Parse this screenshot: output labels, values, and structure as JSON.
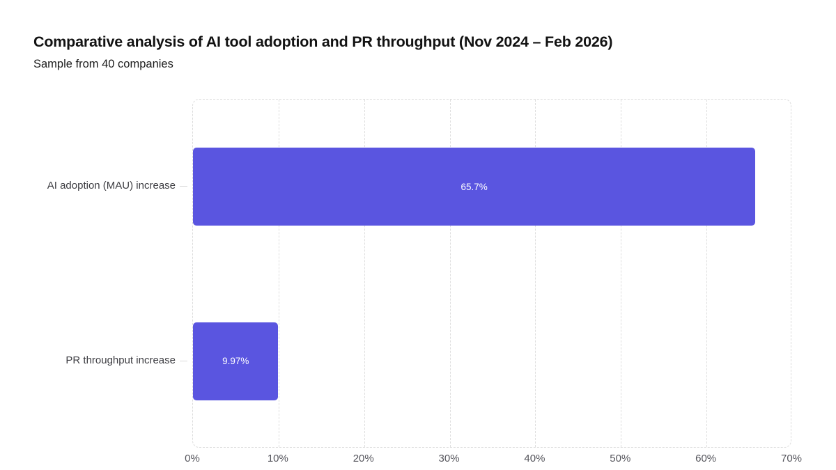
{
  "chart_data": {
    "type": "bar",
    "orientation": "horizontal",
    "title": "Comparative analysis of AI tool adoption and PR throughput (Nov 2024 – Feb 2026)",
    "subtitle": "Sample from 40 companies",
    "categories": [
      "AI adoption (MAU) increase",
      "PR throughput increase"
    ],
    "values": [
      65.7,
      9.97
    ],
    "value_labels": [
      "65.7%",
      "9.97%"
    ],
    "xlabel": "",
    "ylabel": "",
    "xlim": [
      0,
      70
    ],
    "x_ticks": [
      0,
      10,
      20,
      30,
      40,
      50,
      60,
      70
    ],
    "x_tick_labels": [
      "0%",
      "10%",
      "20%",
      "30%",
      "40%",
      "50%",
      "60%",
      "70%"
    ],
    "bar_color": "#5a55e0",
    "value_label_color": "#ffffff",
    "grid": "vertical-dashed",
    "legend": "none"
  }
}
